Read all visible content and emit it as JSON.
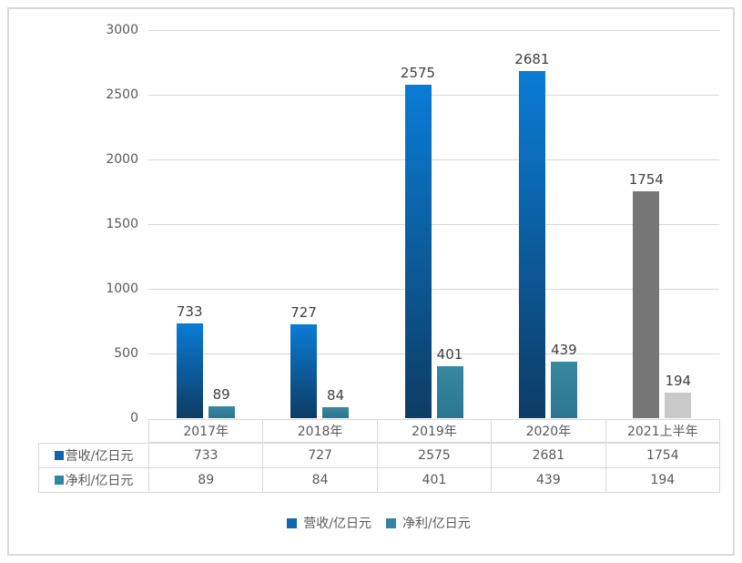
{
  "chart_data": {
    "type": "bar",
    "title": "",
    "categories": [
      "2017年",
      "2018年",
      "2019年",
      "2020年",
      "2021上半年"
    ],
    "series": [
      {
        "name": "营收/亿日元",
        "values": [
          733,
          727,
          2575,
          2681,
          1754
        ],
        "fills": [
          {
            "type": "gradient",
            "from": "#0A7CD6",
            "to": "#0D3C64"
          },
          {
            "type": "gradient",
            "from": "#0A7CD6",
            "to": "#0D3C64"
          },
          {
            "type": "gradient",
            "from": "#0A7CD6",
            "to": "#0D3C64"
          },
          {
            "type": "gradient",
            "from": "#0A7CD6",
            "to": "#0D3C64"
          },
          {
            "type": "solid",
            "color": "#767676"
          }
        ],
        "key_color": "#1266AE"
      },
      {
        "name": "净利/亿日元",
        "values": [
          89,
          84,
          401,
          439,
          194
        ],
        "fills": [
          {
            "type": "gradient",
            "from": "#38899F",
            "to": "#2B7590"
          },
          {
            "type": "gradient",
            "from": "#38899F",
            "to": "#2B7590"
          },
          {
            "type": "gradient",
            "from": "#38899F",
            "to": "#2B7590"
          },
          {
            "type": "gradient",
            "from": "#38899F",
            "to": "#2B7590"
          },
          {
            "type": "solid",
            "color": "#C9C9C9"
          }
        ],
        "key_color": "#3187A3"
      }
    ],
    "ylim": [
      0,
      3000
    ],
    "yticks": [
      0,
      500,
      1000,
      1500,
      2000,
      2500,
      3000
    ],
    "grid": true,
    "legend_position": "bottom",
    "data_table_shown": true,
    "data_labels_shown": true
  },
  "colors": {
    "gridline": "#D9D9D9",
    "axis_text": "#595959",
    "data_label_text": "#404040",
    "table_border": "#D9D9D9",
    "table_text": "#595959",
    "outer_border": "#DADADA",
    "background": "#FFFFFF"
  }
}
